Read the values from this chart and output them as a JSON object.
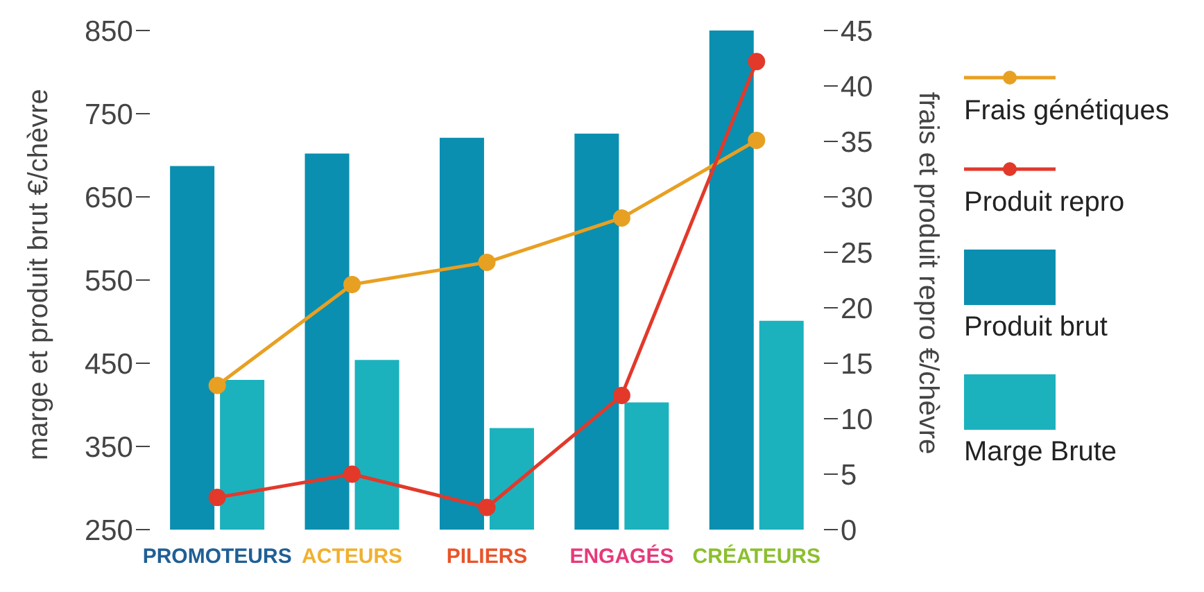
{
  "chart_data": {
    "type": "bar",
    "categories": [
      "PROMOTEURS",
      "ACTEURS",
      "PILIERS",
      "ENGAGÉS",
      "CRÉATEURS"
    ],
    "ylabel": "marge et produit brut €/chèvre",
    "y2label": "frais et produit repro €/chèvre",
    "ylim": [
      250,
      850
    ],
    "yticks": [
      250,
      350,
      450,
      550,
      650,
      750,
      850
    ],
    "y2lim": [
      0,
      45
    ],
    "y2ticks": [
      0,
      5,
      10,
      15,
      20,
      25,
      30,
      35,
      40,
      45
    ],
    "series": [
      {
        "name": "Frais génétiques",
        "type": "line",
        "axis": "y2",
        "color": "#e8a022",
        "values": [
          13,
          22.1,
          24.1,
          28.1,
          35.1
        ]
      },
      {
        "name": "Produit repro",
        "type": "line",
        "axis": "y2",
        "color": "#e2392b",
        "values": [
          2.9,
          5,
          2,
          12.1,
          42.2
        ]
      },
      {
        "name": "Produit brut",
        "color": "#0a8fb0",
        "values": [
          687,
          702,
          721,
          726,
          850
        ]
      },
      {
        "name": "Marge Brute",
        "color": "#1bb2be",
        "values": [
          430,
          454,
          372,
          403,
          501
        ]
      }
    ],
    "legend": "right",
    "marker": "circle",
    "grid": false
  }
}
